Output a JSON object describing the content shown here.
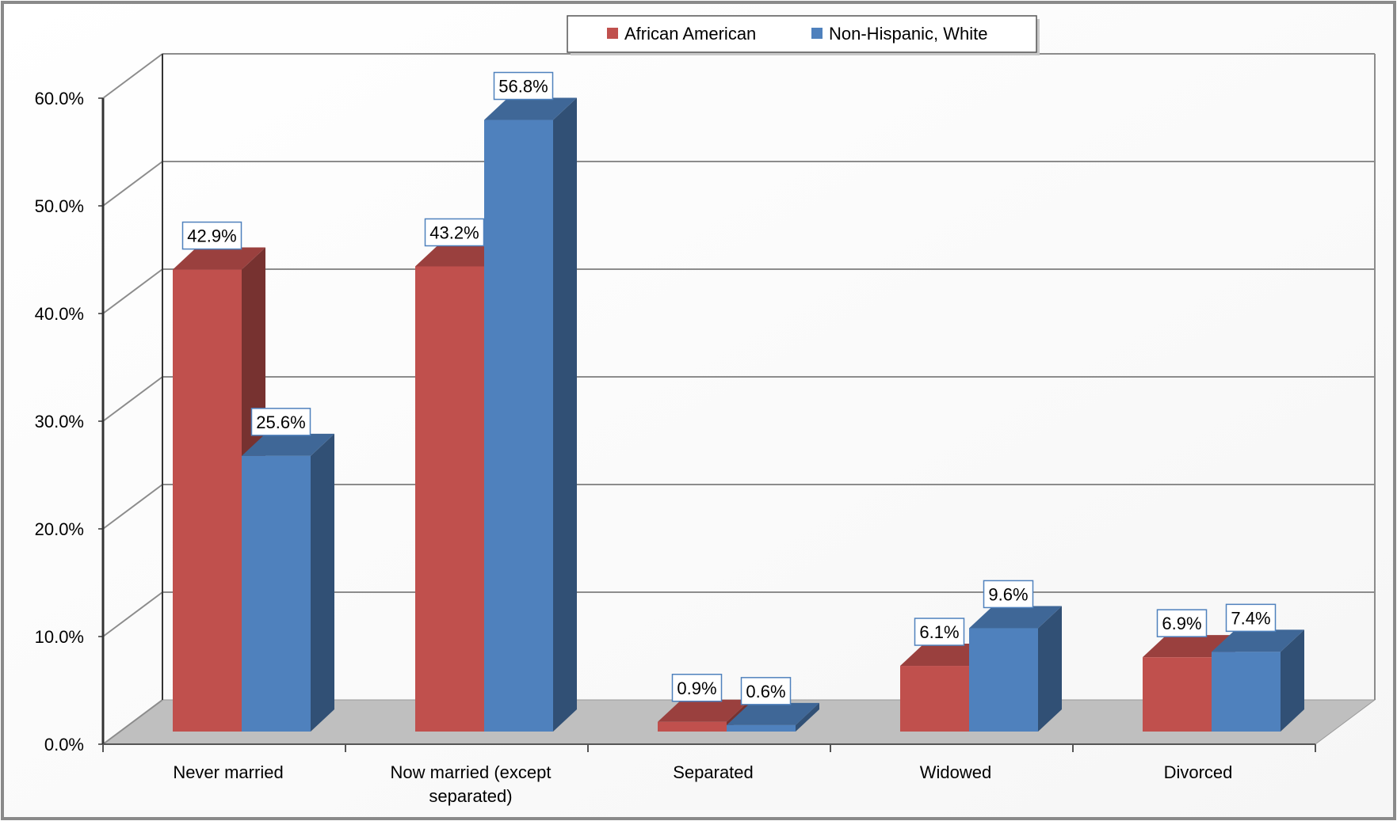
{
  "chart_data": {
    "type": "bar",
    "title": "",
    "xlabel": "",
    "ylabel": "",
    "categories": [
      [
        "Never married"
      ],
      [
        "Now married (except",
        "separated)"
      ],
      [
        "Separated"
      ],
      [
        "Widowed"
      ],
      [
        "Divorced"
      ]
    ],
    "series": [
      {
        "name": "African American",
        "color": "#c0504d",
        "values": [
          42.9,
          43.2,
          0.9,
          6.1,
          6.9
        ],
        "labels": [
          "42.9%",
          "43.2%",
          "0.9%",
          "6.1%",
          "6.9%"
        ]
      },
      {
        "name": "Non-Hispanic, White",
        "color": "#4f81bd",
        "values": [
          25.6,
          56.8,
          0.6,
          9.6,
          7.4
        ],
        "labels": [
          "25.6%",
          "56.8%",
          "0.6%",
          "9.6%",
          "7.4%"
        ]
      }
    ],
    "ylim": [
      0,
      60
    ],
    "yticks": [
      "0.0%",
      "10.0%",
      "20.0%",
      "30.0%",
      "40.0%",
      "50.0%",
      "60.0%"
    ],
    "grid": true,
    "legend": "top-center",
    "style": "3d-clustered-column"
  }
}
